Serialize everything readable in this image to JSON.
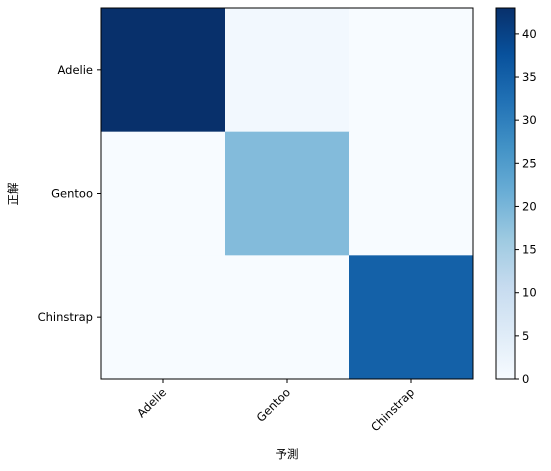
{
  "chart_data": {
    "type": "heatmap",
    "x_categories": [
      "Adelie",
      "Gentoo",
      "Chinstrap"
    ],
    "y_categories": [
      "Adelie",
      "Gentoo",
      "Chinstrap"
    ],
    "values": [
      [
        43,
        1,
        0
      ],
      [
        0,
        19,
        0
      ],
      [
        0,
        0,
        35
      ]
    ],
    "xlabel": "予測",
    "ylabel": "正解",
    "colorbar": {
      "colormap": "Blues",
      "vmin": 0,
      "vmax": 43,
      "ticks": [
        0,
        5,
        10,
        15,
        20,
        25,
        30,
        35,
        40
      ]
    },
    "x_tick_rotation_deg": 45,
    "grid": false
  }
}
